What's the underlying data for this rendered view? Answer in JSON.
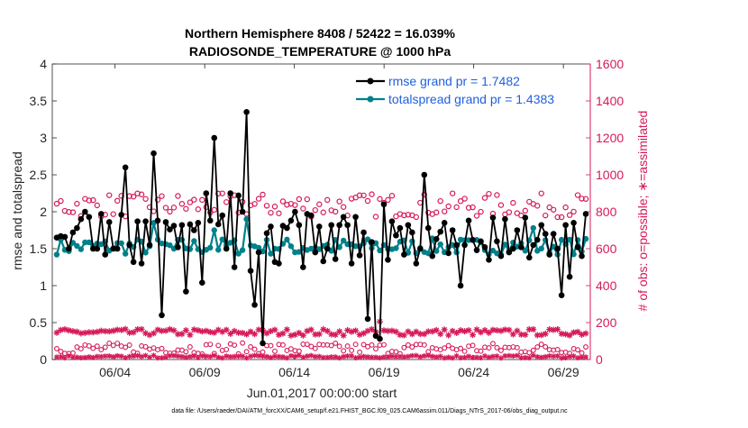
{
  "chart_data": {
    "type": "line",
    "title_line1": "Northern Hemisphere 8408 / 52422 = 16.039%",
    "title_line2": "RADIOSONDE_TEMPERATURE @ 1000 hPa",
    "xlabel": "Jun.01,2017 00:00:00 start",
    "ylabel_left": "rmse and totalspread",
    "ylabel_right": "# of obs: o=possible; ∗=assimilated",
    "footer": "data file: /Users/raeder/DAI/ATM_forcXX/CAM6_setup/f.e21.FHIST_BGC.f09_025.CAM6assim.011/Diags_NTrS_2017-06/obs_diag_output.nc",
    "x_range": [
      0.5,
      30.5
    ],
    "ylim_left": [
      0,
      4
    ],
    "ylim_right": [
      0,
      1600
    ],
    "x_ticks": [
      {
        "day": 4,
        "label": "06/04"
      },
      {
        "day": 9,
        "label": "06/09"
      },
      {
        "day": 14,
        "label": "06/14"
      },
      {
        "day": 19,
        "label": "06/19"
      },
      {
        "day": 24,
        "label": "06/24"
      },
      {
        "day": 29,
        "label": "06/29"
      }
    ],
    "y_ticks_left": [
      "0",
      "0.5",
      "1",
      "1.5",
      "2",
      "2.5",
      "3",
      "3.5",
      "4"
    ],
    "y_ticks_right": [
      "0",
      "200",
      "400",
      "600",
      "800",
      "1000",
      "1200",
      "1400",
      "1600"
    ],
    "colors": {
      "rmse": "#000000",
      "spread": "#00808A",
      "obs": "#D6195A",
      "legend_text": "#1F5FE0",
      "axis": "#262626"
    },
    "legend": [
      {
        "key": "rmse",
        "label": "rmse grand pr = 1.7482"
      },
      {
        "key": "spread",
        "label": "totalspread grand pr = 1.4383"
      }
    ],
    "rmse": [
      1.65,
      1.67,
      1.66,
      1.5,
      1.72,
      1.78,
      1.9,
      2.0,
      1.93,
      1.5,
      1.5,
      1.97,
      1.42,
      1.86,
      1.5,
      1.5,
      1.96,
      2.6,
      1.55,
      1.32,
      1.87,
      1.3,
      1.87,
      1.55,
      2.79,
      1.88,
      0.6,
      1.86,
      1.76,
      1.81,
      1.52,
      1.82,
      0.92,
      1.83,
      1.75,
      1.85,
      1.04,
      2.25,
      1.88,
      3.0,
      1.83,
      1.95,
      1.5,
      2.25,
      1.25,
      2.22,
      2.0,
      3.35,
      1.2,
      0.74,
      1.45,
      0.22,
      1.71,
      1.8,
      1.32,
      1.3,
      1.81,
      1.78,
      1.88,
      2.0,
      1.82,
      1.25,
      1.97,
      1.95,
      1.45,
      1.8,
      1.33,
      1.5,
      1.82,
      1.36,
      1.82,
      1.93,
      1.82,
      1.3,
      1.93,
      1.41,
      1.72,
      0.55,
      1.59,
      0.32,
      0.28,
      2.1,
      1.35,
      1.87,
      1.68,
      1.78,
      1.42,
      1.82,
      1.72,
      1.3,
      1.5,
      2.5,
      1.78,
      1.4,
      1.63,
      1.73,
      1.85,
      1.44,
      1.75,
      1.55,
      1.0,
      1.55,
      1.88,
      1.62,
      1.48,
      1.6,
      1.52,
      1.35,
      1.92,
      1.6,
      1.4,
      1.9,
      1.45,
      1.5,
      1.75,
      1.52,
      1.92,
      1.38,
      1.55,
      1.62,
      1.82,
      1.7,
      1.42,
      1.7,
      1.5,
      0.87,
      1.82,
      1.12,
      1.85,
      1.52,
      1.4,
      1.97
    ]
  }
}
